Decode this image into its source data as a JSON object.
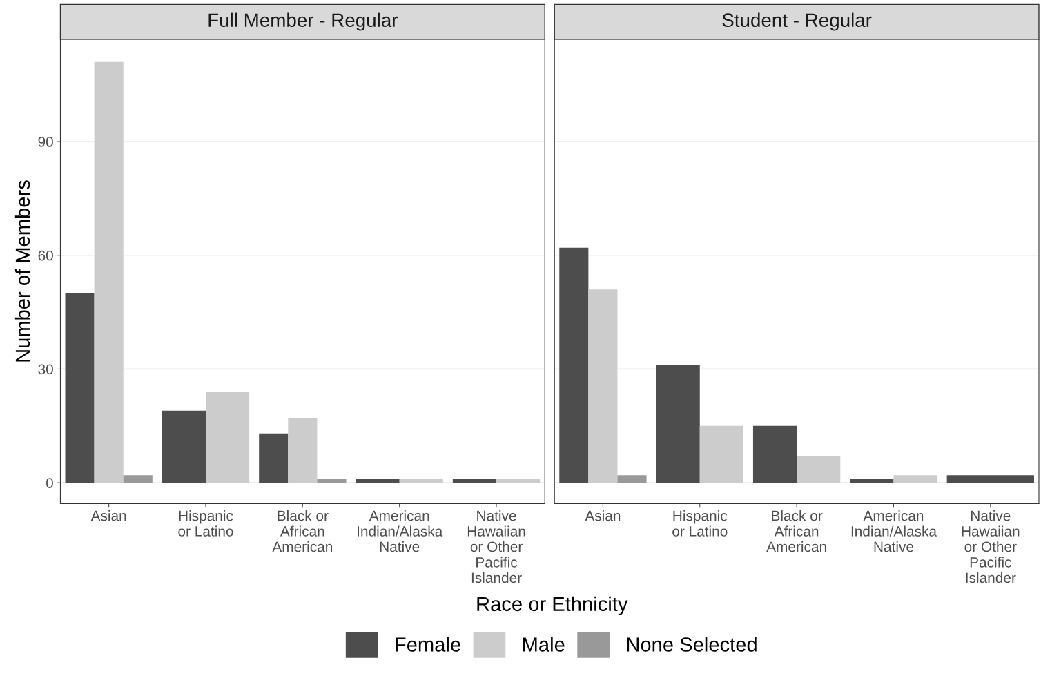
{
  "chart_data": [
    {
      "type": "bar",
      "title": "Full Member - Regular",
      "ylabel": "Number of Members",
      "xlabel": "Race or Ethnicity",
      "categories": [
        "Asian",
        "Hispanic\nor Latino",
        "Black or\nAfrican\nAmerican",
        "American\nIndian/Alaska\nNative",
        "Native\nHawaiian\nor Other\nPacific\nIslander"
      ],
      "series": [
        {
          "name": "Female",
          "color": "#4d4d4d",
          "values": [
            50,
            19,
            13,
            1,
            1
          ]
        },
        {
          "name": "Male",
          "color": "#cccccc",
          "values": [
            111,
            24,
            17,
            1,
            1
          ]
        },
        {
          "name": "None Selected",
          "color": "#999999",
          "values": [
            2,
            null,
            1,
            null,
            null
          ]
        }
      ],
      "ylim": [
        -5.5,
        117
      ],
      "yticks": [
        0,
        30,
        60,
        90
      ],
      "grid": "y",
      "legend": "bottom"
    },
    {
      "type": "bar",
      "title": "Student - Regular",
      "categories": [
        "Asian",
        "Hispanic\nor Latino",
        "Black or\nAfrican\nAmerican",
        "American\nIndian/Alaska\nNative",
        "Native\nHawaiian\nor Other\nPacific\nIslander"
      ],
      "series": [
        {
          "name": "Female",
          "color": "#4d4d4d",
          "values": [
            62,
            31,
            15,
            1,
            2
          ]
        },
        {
          "name": "Male",
          "color": "#cccccc",
          "values": [
            51,
            15,
            7,
            2,
            null
          ]
        },
        {
          "name": "None Selected",
          "color": "#999999",
          "values": [
            2,
            null,
            null,
            null,
            null
          ]
        }
      ],
      "ylim": [
        -5.5,
        117
      ],
      "yticks": [
        0,
        30,
        60,
        90
      ],
      "grid": "y",
      "tick_labels": "x"
    }
  ]
}
